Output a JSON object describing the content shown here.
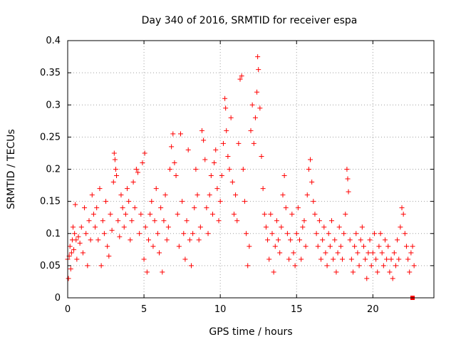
{
  "chart_data": {
    "type": "scatter",
    "title": "Day 340 of 2016, SRMTID for receiver espa",
    "xlabel": "GPS time / hours",
    "ylabel": "SRMTID / TECUs",
    "xlim": [
      0,
      24
    ],
    "ylim": [
      0,
      0.4
    ],
    "grid": true,
    "x_ticks": [
      0,
      5,
      10,
      15,
      20
    ],
    "x_tick_labels": [
      "0",
      "5",
      "10",
      "15",
      "20"
    ],
    "y_ticks": [
      0,
      0.05,
      0.1,
      0.15,
      0.2,
      0.25,
      0.3,
      0.35,
      0.4
    ],
    "y_tick_labels": [
      "0",
      "0.05",
      "0.1",
      "0.15",
      "0.2",
      "0.25",
      "0.3",
      "0.35",
      "0.4"
    ],
    "marker": "+",
    "color": "#ff0000",
    "series": [
      {
        "name": "espa",
        "points": [
          [
            0.0,
            0.06
          ],
          [
            0.05,
            0.03
          ],
          [
            0.1,
            0.065
          ],
          [
            0.15,
            0.08
          ],
          [
            0.2,
            0.045
          ],
          [
            0.25,
            0.07
          ],
          [
            0.3,
            0.09
          ],
          [
            0.35,
            0.11
          ],
          [
            0.4,
            0.075
          ],
          [
            0.45,
            0.1
          ],
          [
            0.5,
            0.145
          ],
          [
            0.55,
            0.09
          ],
          [
            0.6,
            0.06
          ],
          [
            0.7,
            0.095
          ],
          [
            0.8,
            0.085
          ],
          [
            0.9,
            0.11
          ],
          [
            1.0,
            0.07
          ],
          [
            1.1,
            0.14
          ],
          [
            1.2,
            0.1
          ],
          [
            1.3,
            0.05
          ],
          [
            1.4,
            0.12
          ],
          [
            1.5,
            0.09
          ],
          [
            1.6,
            0.16
          ],
          [
            1.7,
            0.13
          ],
          [
            1.8,
            0.11
          ],
          [
            1.9,
            0.14
          ],
          [
            2.0,
            0.09
          ],
          [
            2.1,
            0.17
          ],
          [
            2.2,
            0.05
          ],
          [
            2.3,
            0.12
          ],
          [
            2.4,
            0.1
          ],
          [
            2.5,
            0.15
          ],
          [
            2.6,
            0.08
          ],
          [
            2.7,
            0.065
          ],
          [
            2.8,
            0.13
          ],
          [
            2.9,
            0.105
          ],
          [
            3.0,
            0.18
          ],
          [
            3.05,
            0.225
          ],
          [
            3.1,
            0.215
          ],
          [
            3.15,
            0.2
          ],
          [
            3.2,
            0.19
          ],
          [
            3.3,
            0.12
          ],
          [
            3.4,
            0.095
          ],
          [
            3.5,
            0.16
          ],
          [
            3.6,
            0.14
          ],
          [
            3.7,
            0.11
          ],
          [
            3.8,
            0.13
          ],
          [
            3.9,
            0.17
          ],
          [
            4.0,
            0.15
          ],
          [
            4.1,
            0.09
          ],
          [
            4.2,
            0.12
          ],
          [
            4.3,
            0.18
          ],
          [
            4.4,
            0.14
          ],
          [
            4.5,
            0.2
          ],
          [
            4.6,
            0.195
          ],
          [
            4.7,
            0.1
          ],
          [
            4.8,
            0.13
          ],
          [
            4.9,
            0.21
          ],
          [
            5.0,
            0.06
          ],
          [
            5.05,
            0.225
          ],
          [
            5.1,
            0.11
          ],
          [
            5.2,
            0.04
          ],
          [
            5.3,
            0.09
          ],
          [
            5.4,
            0.13
          ],
          [
            5.5,
            0.15
          ],
          [
            5.6,
            0.08
          ],
          [
            5.7,
            0.12
          ],
          [
            5.8,
            0.17
          ],
          [
            5.9,
            0.1
          ],
          [
            6.0,
            0.07
          ],
          [
            6.1,
            0.14
          ],
          [
            6.2,
            0.04
          ],
          [
            6.3,
            0.12
          ],
          [
            6.4,
            0.16
          ],
          [
            6.5,
            0.09
          ],
          [
            6.6,
            0.11
          ],
          [
            6.7,
            0.2
          ],
          [
            6.8,
            0.235
          ],
          [
            6.9,
            0.255
          ],
          [
            7.0,
            0.21
          ],
          [
            7.1,
            0.19
          ],
          [
            7.2,
            0.13
          ],
          [
            7.3,
            0.08
          ],
          [
            7.4,
            0.255
          ],
          [
            7.5,
            0.15
          ],
          [
            7.6,
            0.1
          ],
          [
            7.7,
            0.06
          ],
          [
            7.8,
            0.12
          ],
          [
            7.9,
            0.23
          ],
          [
            8.0,
            0.09
          ],
          [
            8.1,
            0.05
          ],
          [
            8.2,
            0.1
          ],
          [
            8.3,
            0.14
          ],
          [
            8.4,
            0.2
          ],
          [
            8.5,
            0.16
          ],
          [
            8.6,
            0.09
          ],
          [
            8.7,
            0.11
          ],
          [
            8.8,
            0.26
          ],
          [
            8.9,
            0.245
          ],
          [
            9.0,
            0.215
          ],
          [
            9.1,
            0.14
          ],
          [
            9.2,
            0.1
          ],
          [
            9.3,
            0.16
          ],
          [
            9.4,
            0.19
          ],
          [
            9.5,
            0.13
          ],
          [
            9.6,
            0.21
          ],
          [
            9.7,
            0.23
          ],
          [
            9.8,
            0.17
          ],
          [
            9.9,
            0.12
          ],
          [
            10.0,
            0.15
          ],
          [
            10.1,
            0.19
          ],
          [
            10.2,
            0.24
          ],
          [
            10.3,
            0.31
          ],
          [
            10.35,
            0.295
          ],
          [
            10.4,
            0.26
          ],
          [
            10.5,
            0.22
          ],
          [
            10.6,
            0.2
          ],
          [
            10.7,
            0.28
          ],
          [
            10.8,
            0.18
          ],
          [
            10.9,
            0.13
          ],
          [
            11.0,
            0.16
          ],
          [
            11.1,
            0.12
          ],
          [
            11.2,
            0.24
          ],
          [
            11.3,
            0.34
          ],
          [
            11.4,
            0.345
          ],
          [
            11.5,
            0.2
          ],
          [
            11.6,
            0.15
          ],
          [
            11.7,
            0.1
          ],
          [
            11.8,
            0.05
          ],
          [
            11.9,
            0.08
          ],
          [
            12.0,
            0.26
          ],
          [
            12.1,
            0.3
          ],
          [
            12.2,
            0.24
          ],
          [
            12.3,
            0.28
          ],
          [
            12.4,
            0.32
          ],
          [
            12.45,
            0.375
          ],
          [
            12.5,
            0.355
          ],
          [
            12.6,
            0.295
          ],
          [
            12.7,
            0.22
          ],
          [
            12.8,
            0.17
          ],
          [
            12.9,
            0.13
          ],
          [
            13.0,
            0.11
          ],
          [
            13.1,
            0.09
          ],
          [
            13.2,
            0.06
          ],
          [
            13.3,
            0.13
          ],
          [
            13.4,
            0.1
          ],
          [
            13.5,
            0.04
          ],
          [
            13.6,
            0.08
          ],
          [
            13.7,
            0.12
          ],
          [
            13.8,
            0.09
          ],
          [
            13.9,
            0.07
          ],
          [
            14.0,
            0.11
          ],
          [
            14.1,
            0.16
          ],
          [
            14.2,
            0.19
          ],
          [
            14.3,
            0.14
          ],
          [
            14.4,
            0.1
          ],
          [
            14.5,
            0.06
          ],
          [
            14.6,
            0.09
          ],
          [
            14.7,
            0.13
          ],
          [
            14.8,
            0.07
          ],
          [
            14.9,
            0.05
          ],
          [
            15.0,
            0.1
          ],
          [
            15.1,
            0.14
          ],
          [
            15.2,
            0.09
          ],
          [
            15.3,
            0.06
          ],
          [
            15.4,
            0.11
          ],
          [
            15.5,
            0.12
          ],
          [
            15.6,
            0.08
          ],
          [
            15.7,
            0.16
          ],
          [
            15.8,
            0.2
          ],
          [
            15.9,
            0.215
          ],
          [
            16.0,
            0.18
          ],
          [
            16.1,
            0.15
          ],
          [
            16.2,
            0.13
          ],
          [
            16.3,
            0.1
          ],
          [
            16.4,
            0.08
          ],
          [
            16.5,
            0.12
          ],
          [
            16.6,
            0.06
          ],
          [
            16.7,
            0.09
          ],
          [
            16.8,
            0.11
          ],
          [
            16.9,
            0.07
          ],
          [
            17.0,
            0.05
          ],
          [
            17.1,
            0.1
          ],
          [
            17.2,
            0.08
          ],
          [
            17.3,
            0.12
          ],
          [
            17.4,
            0.06
          ],
          [
            17.5,
            0.09
          ],
          [
            17.6,
            0.04
          ],
          [
            17.7,
            0.07
          ],
          [
            17.8,
            0.11
          ],
          [
            17.9,
            0.08
          ],
          [
            18.0,
            0.06
          ],
          [
            18.1,
            0.1
          ],
          [
            18.2,
            0.13
          ],
          [
            18.3,
            0.2
          ],
          [
            18.35,
            0.185
          ],
          [
            18.4,
            0.165
          ],
          [
            18.5,
            0.09
          ],
          [
            18.6,
            0.06
          ],
          [
            18.7,
            0.04
          ],
          [
            18.8,
            0.08
          ],
          [
            18.9,
            0.1
          ],
          [
            19.0,
            0.07
          ],
          [
            19.1,
            0.05
          ],
          [
            19.2,
            0.09
          ],
          [
            19.3,
            0.11
          ],
          [
            19.4,
            0.08
          ],
          [
            19.5,
            0.06
          ],
          [
            19.6,
            0.03
          ],
          [
            19.7,
            0.07
          ],
          [
            19.8,
            0.09
          ],
          [
            19.9,
            0.05
          ],
          [
            20.0,
            0.07
          ],
          [
            20.1,
            0.1
          ],
          [
            20.2,
            0.06
          ],
          [
            20.3,
            0.04
          ],
          [
            20.4,
            0.08
          ],
          [
            20.5,
            0.1
          ],
          [
            20.6,
            0.07
          ],
          [
            20.7,
            0.05
          ],
          [
            20.8,
            0.09
          ],
          [
            20.9,
            0.06
          ],
          [
            21.0,
            0.08
          ],
          [
            21.1,
            0.04
          ],
          [
            21.2,
            0.06
          ],
          [
            21.3,
            0.03
          ],
          [
            21.4,
            0.07
          ],
          [
            21.5,
            0.05
          ],
          [
            21.6,
            0.09
          ],
          [
            21.7,
            0.06
          ],
          [
            21.8,
            0.11
          ],
          [
            21.9,
            0.14
          ],
          [
            22.0,
            0.13
          ],
          [
            22.1,
            0.1
          ],
          [
            22.2,
            0.08
          ],
          [
            22.3,
            0.06
          ],
          [
            22.4,
            0.04
          ],
          [
            22.5,
            0.07
          ],
          [
            22.6,
            0.08
          ],
          [
            22.7,
            0.05
          ]
        ]
      }
    ],
    "last_point_marker": [
      22.6,
      0.0
    ]
  }
}
